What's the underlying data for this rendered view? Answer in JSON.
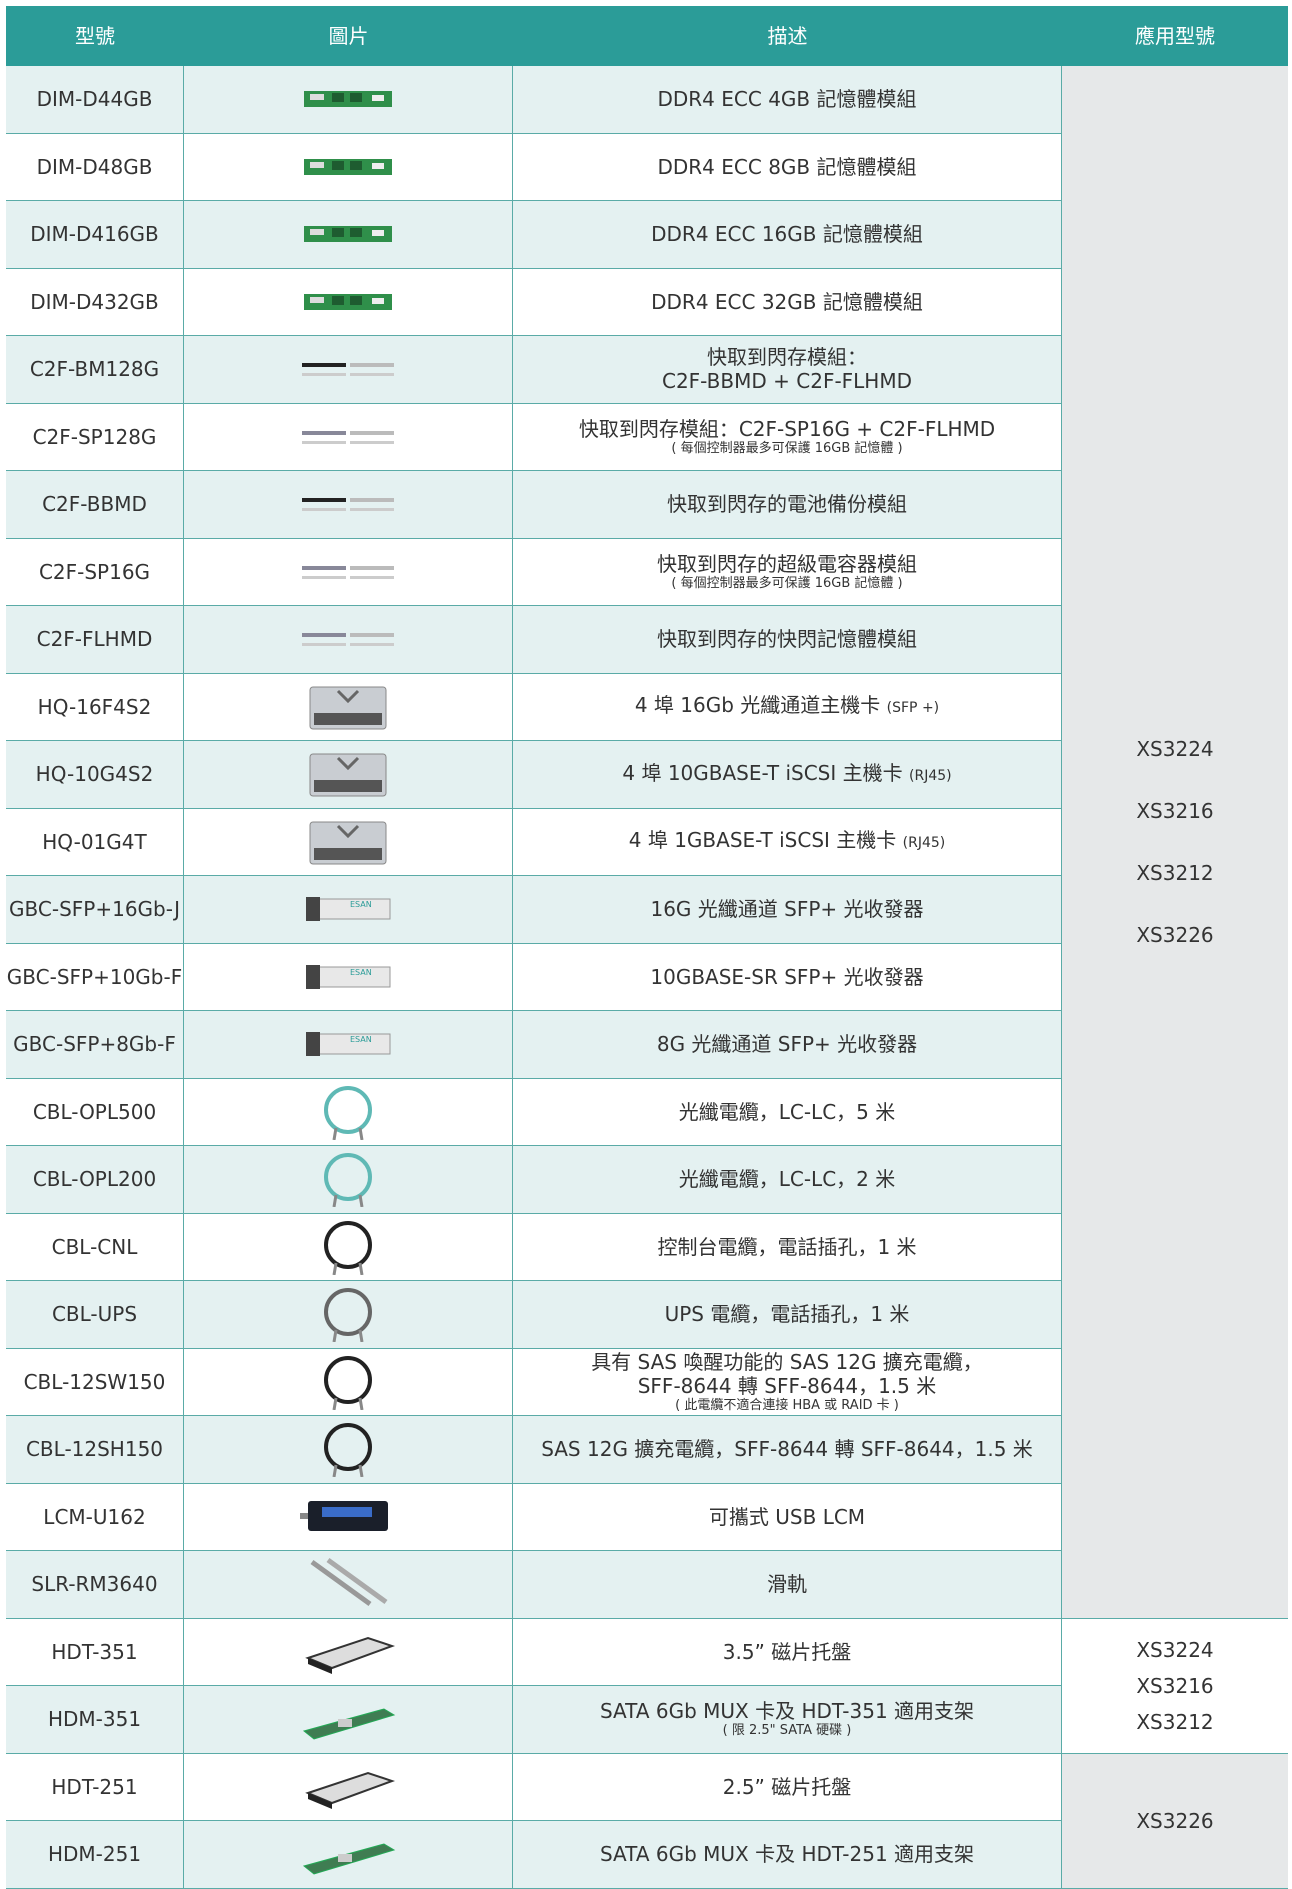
{
  "header": [
    "型號",
    "圖片",
    "描述",
    "應用型號"
  ],
  "rows": [
    {
      "model": "DIM-D44GB",
      "description": [
        "DDR4 ECC 4GB 記憶體模組"
      ]
    },
    {
      "model": "DIM-D48GB",
      "description": [
        "DDR4 ECC 8GB 記憶體模組"
      ]
    },
    {
      "model": "DIM-D416GB",
      "description": [
        "DDR4 ECC 16GB 記憶體模組"
      ]
    },
    {
      "model": "DIM-D432GB",
      "description": [
        "DDR4 ECC 32GB 記憶體模組"
      ]
    },
    {
      "model": "C2F-BM128G",
      "description": [
        "快取到閃存模組：",
        "C2F-BBMD + C2F-FLHMD"
      ]
    },
    {
      "model": "C2F-SP128G",
      "description": [
        "快取到閃存模組：C2F-SP16G + C2F-FLHMD"
      ],
      "note": "( 每個控制器最多可保護 16GB 記憶體 )"
    },
    {
      "model": "C2F-BBMD",
      "description": [
        "快取到閃存的電池備份模組"
      ]
    },
    {
      "model": "C2F-SP16G",
      "description": [
        "快取到閃存的超級電容器模組"
      ],
      "note": "( 每個控制器最多可保護 16GB 記憶體 )"
    },
    {
      "model": "C2F-FLHMD",
      "description": [
        "快取到閃存的快閃記憶體模組"
      ]
    },
    {
      "model": "HQ-16F4S2",
      "description": [
        "4 埠 16Gb 光纖通道主機卡"
      ],
      "suffix": "(SFP +)"
    },
    {
      "model": "HQ-10G4S2",
      "description": [
        "4 埠 10GBASE-T iSCSI 主機卡"
      ],
      "suffix": "(RJ45)"
    },
    {
      "model": "HQ-01G4T",
      "description": [
        "4 埠 1GBASE-T iSCSI 主機卡"
      ],
      "suffix": "(RJ45)"
    },
    {
      "model": "GBC-SFP+16Gb-J",
      "description": [
        "16G 光纖通道 SFP+ 光收發器"
      ]
    },
    {
      "model": "GBC-SFP+10Gb-F",
      "description": [
        "10GBASE-SR SFP+ 光收發器"
      ]
    },
    {
      "model": "GBC-SFP+8Gb-F",
      "description": [
        "8G 光纖通道 SFP+ 光收發器"
      ]
    },
    {
      "model": "CBL-OPL500",
      "description": [
        "光纖電纜，LC-LC，5 米"
      ]
    },
    {
      "model": "CBL-OPL200",
      "description": [
        "光纖電纜，LC-LC，2 米"
      ]
    },
    {
      "model": "CBL-CNL",
      "description": [
        "控制台電纜，電話插孔，1 米"
      ]
    },
    {
      "model": "CBL-UPS",
      "description": [
        "UPS 電纜，電話插孔，1 米"
      ]
    },
    {
      "model": "CBL-12SW150",
      "description": [
        "具有 SAS 喚醒功能的 SAS 12G 擴充電纜，",
        "SFF-8644 轉 SFF-8644，1.5 米"
      ],
      "note": "( 此電纜不適合連接 HBA 或 RAID 卡 )"
    },
    {
      "model": "CBL-12SH150",
      "description": [
        "SAS 12G 擴充電纜，SFF-8644 轉 SFF-8644，1.5 米"
      ]
    },
    {
      "model": "LCM-U162",
      "description": [
        "可攜式 USB LCM"
      ]
    },
    {
      "model": "SLR-RM3640",
      "description": [
        "滑軌"
      ]
    },
    {
      "model": "HDT-351",
      "description": [
        "3.5” 磁片托盤"
      ]
    },
    {
      "model": "HDM-351",
      "description": [
        "SATA 6Gb MUX 卡及 HDT-351 適用支架"
      ],
      "note": "( 限 2.5\" SATA 硬碟 )"
    },
    {
      "model": "HDT-251",
      "description": [
        "2.5” 磁片托盤"
      ]
    },
    {
      "model": "HDM-251",
      "description": [
        "SATA 6Gb MUX 卡及 HDT-251 適用支架"
      ]
    }
  ],
  "applicable_models": [
    [
      "XS3224",
      "XS3216",
      "XS3212",
      "XS3226"
    ],
    [
      "XS3224",
      "XS3216",
      "XS3212"
    ],
    [
      "XS3226"
    ]
  ]
}
